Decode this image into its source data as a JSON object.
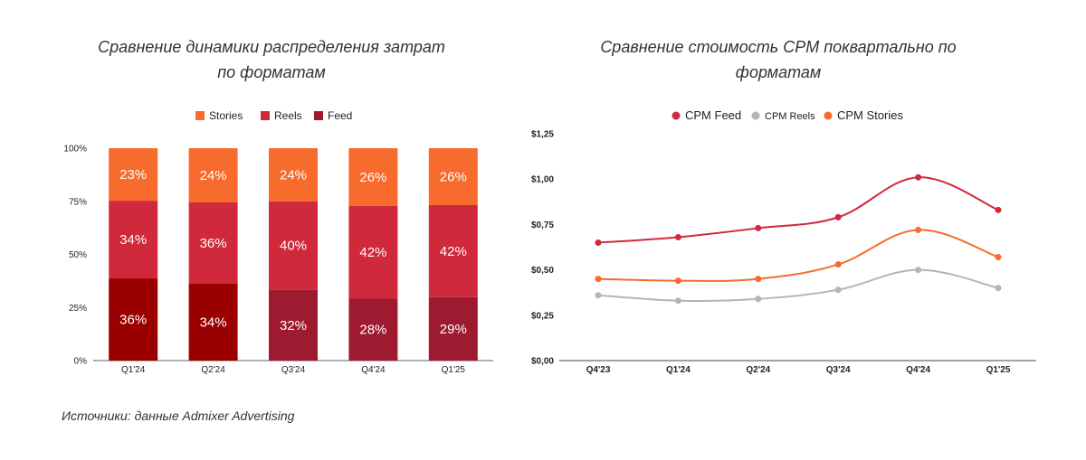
{
  "titles": {
    "left": "Сравнение динамики распределения затрат по форматам",
    "right": "Сравнение стоимость CPM поквартально по форматам"
  },
  "source": "Источники: данные Admixer Advertising",
  "chart_data": [
    {
      "type": "bar",
      "stacked": true,
      "title": "Сравнение динамики распределения затрат по форматам",
      "categories": [
        "Q1'24",
        "Q2'24",
        "Q3'24",
        "Q4'24",
        "Q1'25"
      ],
      "y_ticks": [
        "0%",
        "25%",
        "50%",
        "75%",
        "100%"
      ],
      "ylim": [
        0,
        100
      ],
      "legend": "top",
      "series": [
        {
          "name": "Feed",
          "values": [
            36,
            34,
            32,
            28,
            29
          ],
          "colors": [
            "#9b0000",
            "#9b0000",
            "#9e1a30",
            "#9e1a30",
            "#9e1a30"
          ],
          "labels": [
            "36%",
            "34%",
            "32%",
            "28%",
            "29%"
          ]
        },
        {
          "name": "Reels",
          "values": [
            34,
            36,
            40,
            42,
            42
          ],
          "color": "#d0293b",
          "labels": [
            "34%",
            "36%",
            "40%",
            "42%",
            "42%"
          ]
        },
        {
          "name": "Stories",
          "values": [
            23,
            24,
            24,
            26,
            26
          ],
          "color": "#f76b2c",
          "labels": [
            "23%",
            "24%",
            "24%",
            "26%",
            "26%"
          ]
        }
      ],
      "legend_order": [
        "Stories",
        "Reels",
        "Feed"
      ],
      "legend_colors": {
        "Stories": "#f76b2c",
        "Reels": "#d0293b",
        "Feed": "#9e1a30"
      }
    },
    {
      "type": "line",
      "title": "Сравнение стоимость CPM поквартально по форматам",
      "categories": [
        "Q4'23",
        "Q1'24",
        "Q2'24",
        "Q3'24",
        "Q4'24",
        "Q1'25"
      ],
      "y_ticks": [
        "$0,00",
        "$0,25",
        "$0,50",
        "$0,75",
        "$1,00",
        "$1,25"
      ],
      "ylim": [
        0,
        1.25
      ],
      "legend": "top",
      "series": [
        {
          "name": "CPM Feed",
          "color": "#d0293b",
          "values": [
            0.65,
            0.68,
            0.73,
            0.79,
            1.01,
            0.83
          ]
        },
        {
          "name": "CPM Reels",
          "color": "#b5b5b5",
          "values": [
            0.36,
            0.33,
            0.34,
            0.39,
            0.5,
            0.4
          ]
        },
        {
          "name": "CPM Stories",
          "color": "#f76b2c",
          "values": [
            0.45,
            0.44,
            0.45,
            0.53,
            0.72,
            0.57
          ]
        }
      ]
    }
  ]
}
